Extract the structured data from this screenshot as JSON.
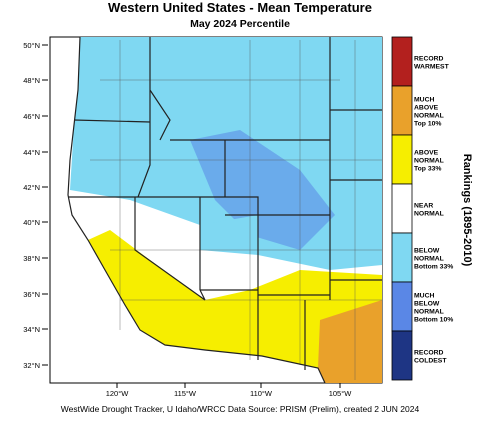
{
  "header": {
    "title": "Western United States - Mean Temperature",
    "subtitle": "May 2024 Percentile"
  },
  "map": {
    "lat_labels": [
      "50°N",
      "48°N",
      "46°N",
      "44°N",
      "42°N",
      "40°N",
      "38°N",
      "36°N",
      "34°N",
      "32°N"
    ],
    "lon_labels": [
      "120°W",
      "115°W",
      "110°W",
      "105°W"
    ]
  },
  "legend": {
    "title": "Rankings (1895-2010)",
    "categories": [
      {
        "lines": [
          "RECORD",
          "WARMEST"
        ],
        "color": "#b3201e"
      },
      {
        "lines": [
          "MUCH",
          "ABOVE",
          "NORMAL",
          "Top 10%"
        ],
        "color": "#e9a12b"
      },
      {
        "lines": [
          "ABOVE",
          "NORMAL",
          "Top 33%"
        ],
        "color": "#f6ee00"
      },
      {
        "lines": [
          "NEAR",
          "NORMAL"
        ],
        "color": "#ffffff"
      },
      {
        "lines": [
          "BELOW",
          "NORMAL",
          "Bottom 33%"
        ],
        "color": "#7fd8f2"
      },
      {
        "lines": [
          "MUCH",
          "BELOW",
          "NORMAL",
          "Bottom 10%"
        ],
        "color": "#5a87e6"
      },
      {
        "lines": [
          "RECORD",
          "COLDEST"
        ],
        "color": "#1e3584"
      }
    ]
  },
  "footer": "WestWide Drought Tracker, U Idaho/WRCC Data Source: PRISM (Prelim), created  2 JUN 2024"
}
